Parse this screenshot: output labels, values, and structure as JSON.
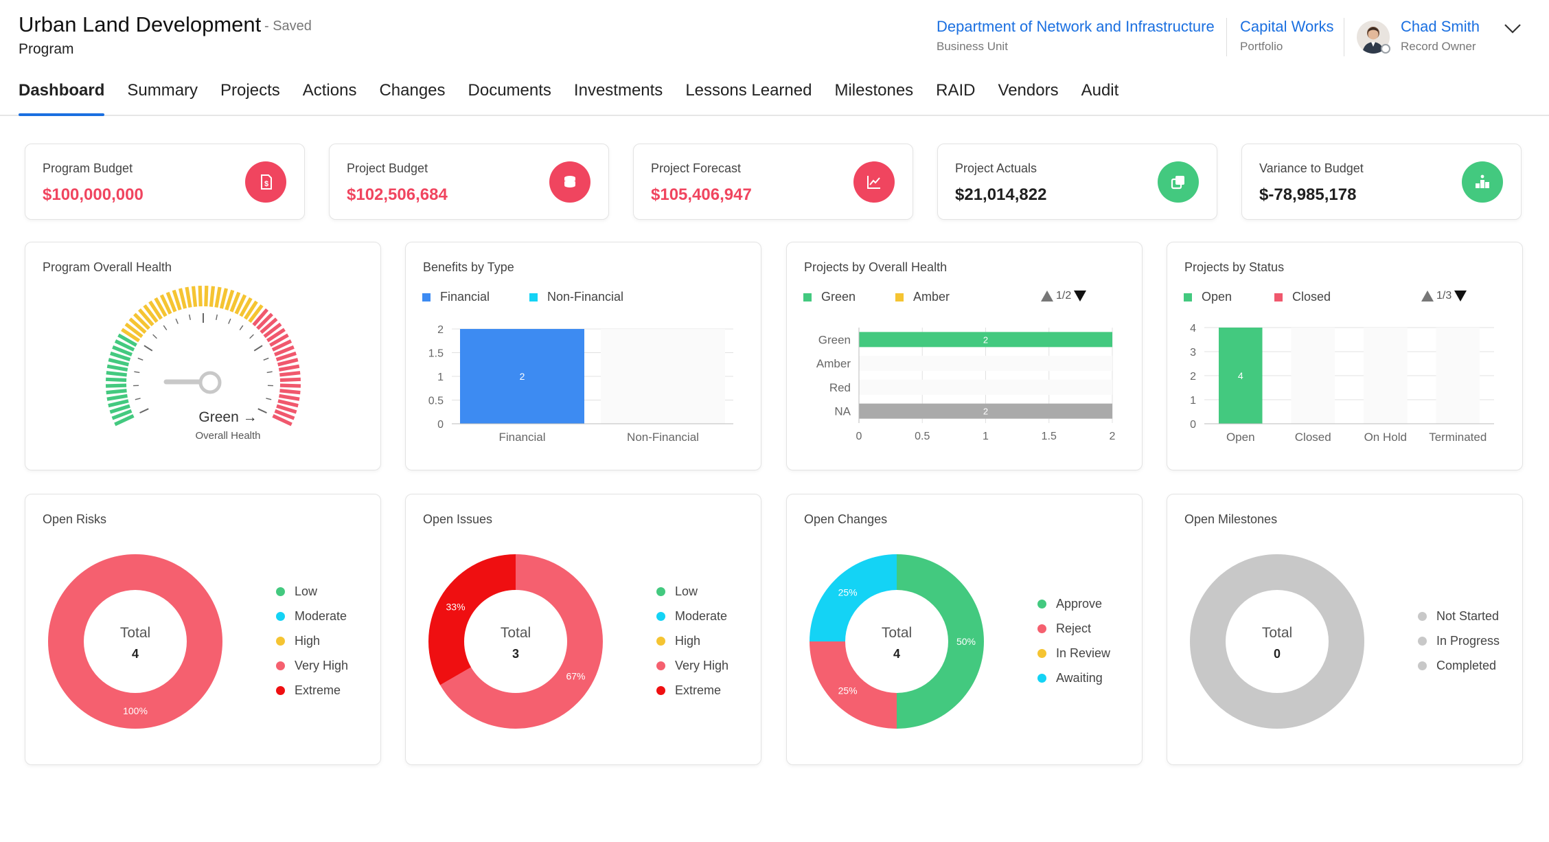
{
  "header": {
    "title": "Urban Land Development",
    "saved": "- Saved",
    "subtitle": "Program",
    "business_unit": {
      "value": "Department of Network and Infrastructure",
      "label": "Business Unit"
    },
    "portfolio": {
      "value": "Capital Works",
      "label": "Portfolio"
    },
    "owner": {
      "value": "Chad Smith",
      "label": "Record Owner"
    }
  },
  "tabs": [
    "Dashboard",
    "Summary",
    "Projects",
    "Actions",
    "Changes",
    "Documents",
    "Investments",
    "Lessons Learned",
    "Milestones",
    "RAID",
    "Vendors",
    "Audit"
  ],
  "active_tab": "Dashboard",
  "kpis": [
    {
      "label": "Program Budget",
      "value": "$100,000,000",
      "value_color": "#f0455f",
      "icon": "dollar-document-icon",
      "icon_color": "#f0455f"
    },
    {
      "label": "Project Budget",
      "value": "$102,506,684",
      "value_color": "#f0455f",
      "icon": "coins-icon",
      "icon_color": "#f0455f"
    },
    {
      "label": "Project Forecast",
      "value": "$105,406,947",
      "value_color": "#f0455f",
      "icon": "trend-chart-icon",
      "icon_color": "#f0455f"
    },
    {
      "label": "Project Actuals",
      "value": "$21,014,822",
      "value_color": "#1f1f1f",
      "icon": "copy-icon",
      "icon_color": "#43c97f"
    },
    {
      "label": "Variance to Budget",
      "value": "$-78,985,178",
      "value_color": "#1f1f1f",
      "icon": "podium-icon",
      "icon_color": "#43c97f"
    }
  ],
  "panels": {
    "program_health": {
      "title": "Program Overall Health",
      "status": "Green →",
      "caption": "Overall Health"
    },
    "benefits": {
      "title": "Benefits by Type"
    },
    "projects_health": {
      "title": "Projects by Overall Health",
      "pager": "1/2"
    },
    "projects_status": {
      "title": "Projects by Status",
      "pager": "1/3"
    },
    "open_risks": {
      "title": "Open Risks",
      "total_label": "Total",
      "total": "4"
    },
    "open_issues": {
      "title": "Open Issues",
      "total_label": "Total",
      "total": "3"
    },
    "open_changes": {
      "title": "Open Changes",
      "total_label": "Total",
      "total": "4"
    },
    "open_milestones": {
      "title": "Open Milestones",
      "total_label": "Total",
      "total": "0"
    }
  },
  "chart_data": [
    {
      "id": "program_health",
      "type": "gauge",
      "value": "Green",
      "bands": [
        {
          "name": "Green",
          "color": "#43c97f"
        },
        {
          "name": "Amber",
          "color": "#f5c432"
        },
        {
          "name": "Red",
          "color": "#f0586d"
        }
      ]
    },
    {
      "id": "benefits",
      "type": "bar",
      "categories": [
        "Financial",
        "Non-Financial"
      ],
      "series": [
        {
          "name": "Financial",
          "values": [
            2,
            0
          ],
          "color": "#3d8bf2"
        },
        {
          "name": "Non-Financial",
          "values": [
            0,
            0
          ],
          "color": "#14d3f5"
        }
      ],
      "ylim": [
        0,
        2
      ],
      "yticks": [
        "0",
        "0.5",
        "1",
        "1.5",
        "2"
      ],
      "data_labels": [
        "2"
      ]
    },
    {
      "id": "projects_health",
      "type": "bar",
      "orientation": "horizontal",
      "categories": [
        "Green",
        "Amber",
        "Red",
        "NA"
      ],
      "values": [
        2,
        0,
        0,
        2
      ],
      "colors": [
        "#43c97f",
        "#f5c432",
        "#f0586d",
        "#aaaaaa"
      ],
      "legend": [
        {
          "name": "Green",
          "color": "#43c97f"
        },
        {
          "name": "Amber",
          "color": "#f5c432"
        }
      ],
      "xlim": [
        0,
        2
      ],
      "xticks": [
        "0",
        "0.5",
        "1",
        "1.5",
        "2"
      ]
    },
    {
      "id": "projects_status",
      "type": "bar",
      "categories": [
        "Open",
        "Closed",
        "On Hold",
        "Terminated"
      ],
      "values": [
        4,
        0,
        0,
        0
      ],
      "colors": [
        "#43c97f",
        "#f0586d",
        "#f5c432",
        "#aaaaaa"
      ],
      "legend": [
        {
          "name": "Open",
          "color": "#43c97f"
        },
        {
          "name": "Closed",
          "color": "#f0586d"
        }
      ],
      "ylim": [
        0,
        4
      ],
      "yticks": [
        "0",
        "1",
        "2",
        "3",
        "4"
      ]
    },
    {
      "id": "open_risks",
      "type": "pie",
      "donut": true,
      "legend": [
        {
          "name": "Low",
          "color": "#43c97f"
        },
        {
          "name": "Moderate",
          "color": "#14d3f5"
        },
        {
          "name": "High",
          "color": "#f5c432"
        },
        {
          "name": "Very High",
          "color": "#f5606f"
        },
        {
          "name": "Extreme",
          "color": "#ef0f11"
        }
      ],
      "slices": [
        {
          "name": "Very High",
          "value": 4,
          "label": "100%",
          "color": "#f5606f"
        }
      ]
    },
    {
      "id": "open_issues",
      "type": "pie",
      "donut": true,
      "legend": [
        {
          "name": "Low",
          "color": "#43c97f"
        },
        {
          "name": "Moderate",
          "color": "#14d3f5"
        },
        {
          "name": "High",
          "color": "#f5c432"
        },
        {
          "name": "Very High",
          "color": "#f5606f"
        },
        {
          "name": "Extreme",
          "color": "#ef0f11"
        }
      ],
      "slices": [
        {
          "name": "Very High",
          "value": 2,
          "label": "67%",
          "color": "#f5606f"
        },
        {
          "name": "Extreme",
          "value": 1,
          "label": "33%",
          "color": "#ef0f11"
        }
      ]
    },
    {
      "id": "open_changes",
      "type": "pie",
      "donut": true,
      "legend": [
        {
          "name": "Approve",
          "color": "#43c97f"
        },
        {
          "name": "Reject",
          "color": "#f5606f"
        },
        {
          "name": "In Review",
          "color": "#f5c432"
        },
        {
          "name": "Awaiting",
          "color": "#14d3f5"
        }
      ],
      "slices": [
        {
          "name": "Approve",
          "value": 2,
          "label": "50%",
          "color": "#43c97f"
        },
        {
          "name": "Reject",
          "value": 1,
          "label": "25%",
          "color": "#f5606f"
        },
        {
          "name": "Awaiting",
          "value": 1,
          "label": "25%",
          "color": "#14d3f5"
        }
      ]
    },
    {
      "id": "open_milestones",
      "type": "pie",
      "donut": true,
      "empty_color": "#c8c8c8",
      "legend": [
        {
          "name": "Not Started",
          "color": "#c8c8c8"
        },
        {
          "name": "In Progress",
          "color": "#c8c8c8"
        },
        {
          "name": "Completed",
          "color": "#c8c8c8"
        }
      ],
      "slices": []
    }
  ]
}
